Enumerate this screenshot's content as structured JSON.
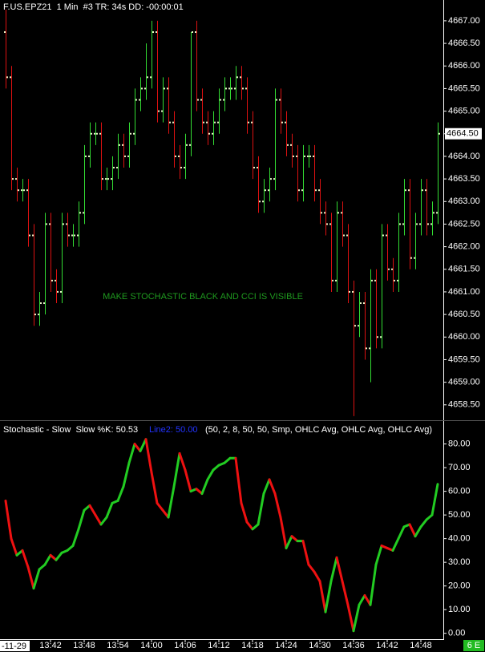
{
  "chart_data": [
    {
      "type": "ohlc",
      "title": "F.US.EPZ21  1 Min  #3 TR: 34s DD: -00:00:01",
      "annotation": "MAKE STOCHASTIC BLACK AND CCI IS VISIBLE",
      "open": [
        4666.75,
        4665.75,
        4663.5,
        4663.25,
        4663.25,
        4662.25,
        4660.5,
        4660.75,
        4662.5,
        4661.25,
        4661.0,
        4662.5,
        4662.25,
        4662.25,
        4662.75,
        4664.0,
        4664.5,
        4664.5,
        4663.5,
        4663.5,
        4663.75,
        4664.25,
        4664.0,
        4664.5,
        4665.25,
        4665.5,
        4665.75,
        4666.75,
        4665.0,
        4665.5,
        4664.75,
        4664.0,
        4663.75,
        4664.25,
        4666.75,
        4665.25,
        4664.75,
        4664.5,
        4664.75,
        4665.25,
        4665.5,
        4665.5,
        4665.75,
        4665.5,
        4664.75,
        4663.75,
        4663.0,
        4663.25,
        4663.5,
        4665.25,
        4664.75,
        4664.25,
        4664.0,
        4663.25,
        4664.0,
        4664.0,
        4663.25,
        4662.75,
        4662.5,
        4661.25,
        4662.75,
        4662.25,
        4661.0,
        4660.25,
        4660.75,
        4659.75,
        4661.25,
        4660.0,
        4662.25,
        4661.5,
        4661.25,
        4662.5,
        4663.25,
        4661.75,
        4662.5,
        4663.25,
        4662.5,
        4662.75
      ],
      "high": [
        4667.25,
        4666.0,
        4663.75,
        4663.5,
        4663.5,
        4662.5,
        4661.0,
        4662.75,
        4662.75,
        4661.5,
        4662.75,
        4662.75,
        4662.5,
        4663.0,
        4664.25,
        4664.75,
        4664.75,
        4664.75,
        4663.75,
        4664.0,
        4664.5,
        4664.5,
        4664.75,
        4665.5,
        4665.75,
        4666.5,
        4667.0,
        4667.0,
        4665.75,
        4665.75,
        4665.0,
        4664.25,
        4664.5,
        4666.75,
        4667.0,
        4665.5,
        4665.0,
        4665.0,
        4665.5,
        4665.75,
        4665.75,
        4666.0,
        4666.0,
        4665.75,
        4665.0,
        4664.0,
        4663.5,
        4663.75,
        4665.5,
        4665.5,
        4665.0,
        4664.5,
        4664.25,
        4664.25,
        4664.25,
        4664.25,
        4663.5,
        4663.0,
        4662.75,
        4663.0,
        4663.0,
        4662.5,
        4661.25,
        4661.0,
        4661.0,
        4661.5,
        4661.5,
        4662.5,
        4662.5,
        4661.75,
        4662.75,
        4663.5,
        4663.5,
        4662.75,
        4663.5,
        4663.5,
        4663.0,
        4664.75
      ],
      "low": [
        4665.5,
        4663.25,
        4663.0,
        4663.0,
        4662.0,
        4660.25,
        4660.25,
        4660.5,
        4661.0,
        4660.75,
        4660.75,
        4662.0,
        4662.0,
        4662.0,
        4662.5,
        4663.75,
        4664.25,
        4663.25,
        4663.25,
        4663.25,
        4663.5,
        4663.75,
        4663.75,
        4664.25,
        4665.0,
        4665.25,
        4665.5,
        4664.75,
        4664.75,
        4664.5,
        4663.75,
        4663.5,
        4663.5,
        4664.0,
        4665.0,
        4664.5,
        4664.25,
        4664.25,
        4664.5,
        4665.0,
        4665.25,
        4665.25,
        4665.25,
        4664.5,
        4663.5,
        4662.75,
        4662.75,
        4663.0,
        4663.25,
        4664.5,
        4664.0,
        4663.75,
        4663.0,
        4663.0,
        4663.75,
        4663.0,
        4662.5,
        4662.25,
        4661.0,
        4661.0,
        4662.0,
        4660.75,
        4658.25,
        4660.0,
        4659.5,
        4659.0,
        4659.75,
        4659.75,
        4661.25,
        4661.0,
        4661.0,
        4662.25,
        4661.5,
        4661.5,
        4662.25,
        4662.25,
        4662.25,
        4662.5
      ],
      "close": [
        4665.75,
        4663.5,
        4663.25,
        4663.25,
        4662.25,
        4660.5,
        4660.75,
        4662.5,
        4661.25,
        4661.0,
        4662.5,
        4662.25,
        4662.25,
        4662.75,
        4664.0,
        4664.5,
        4664.5,
        4663.5,
        4663.5,
        4663.75,
        4664.25,
        4664.0,
        4664.5,
        4665.25,
        4665.5,
        4665.75,
        4666.75,
        4665.0,
        4665.5,
        4664.75,
        4664.0,
        4663.75,
        4664.25,
        4666.75,
        4665.25,
        4664.75,
        4664.5,
        4664.75,
        4665.25,
        4665.5,
        4665.5,
        4665.75,
        4665.5,
        4664.75,
        4663.75,
        4663.0,
        4663.25,
        4663.5,
        4665.25,
        4664.75,
        4664.25,
        4664.0,
        4663.25,
        4664.0,
        4664.0,
        4663.25,
        4662.75,
        4662.5,
        4661.25,
        4662.75,
        4662.25,
        4661.0,
        4660.25,
        4660.75,
        4659.75,
        4661.25,
        4660.0,
        4662.25,
        4661.5,
        4661.25,
        4662.5,
        4663.25,
        4661.75,
        4662.5,
        4663.25,
        4662.5,
        4662.75,
        4664.5
      ],
      "up_color": "#33dd33",
      "down_color": "#dd1111",
      "tick_color": "#e8f4c8",
      "annotation_color": "#1f9a1f",
      "ylim": [
        4658.23,
        4667.46
      ],
      "yticks": [
        {
          "value": 4658.5,
          "label": "4658.50"
        },
        {
          "value": 4659,
          "label": "4659.00"
        },
        {
          "value": 4659.5,
          "label": "4659.50"
        },
        {
          "value": 4660,
          "label": "4660.00"
        },
        {
          "value": 4660.5,
          "label": "4660.50"
        },
        {
          "value": 4661,
          "label": "4661.00"
        },
        {
          "value": 4661.5,
          "label": "4661.50"
        },
        {
          "value": 4662,
          "label": "4662.00"
        },
        {
          "value": 4662.5,
          "label": "4662.50"
        },
        {
          "value": 4663,
          "label": "4663.00"
        },
        {
          "value": 4663.5,
          "label": "4663.50"
        },
        {
          "value": 4664,
          "label": "4664.00"
        },
        {
          "value": 4664.5,
          "label": "4664.50"
        },
        {
          "value": 4665,
          "label": "4665.00"
        },
        {
          "value": 4665.5,
          "label": "4665.50"
        },
        {
          "value": 4666,
          "label": "4666.00"
        },
        {
          "value": 4666.5,
          "label": "4666.50"
        },
        {
          "value": 4667,
          "label": "4667.00"
        }
      ],
      "last_price": {
        "value": 4664.5,
        "label": "4664.50"
      }
    },
    {
      "type": "line",
      "title": "Stochastic - Slow  Slow %K: 50.53",
      "subtitle": "Line2: 50.00",
      "params": "(50, 2, 8, 50, 50, Smp, OHLC Avg, OHLC Avg, OHLC Avg)",
      "date_label": "-11-29",
      "status": "6 E",
      "categories": [
        null,
        null,
        null,
        null,
        null,
        null,
        null,
        null,
        "13:42",
        null,
        null,
        null,
        null,
        null,
        "13:48",
        null,
        null,
        null,
        null,
        null,
        "13:54",
        null,
        null,
        null,
        null,
        null,
        "14:00",
        null,
        null,
        null,
        null,
        null,
        "14:06",
        null,
        null,
        null,
        null,
        null,
        "14:12",
        null,
        null,
        null,
        null,
        null,
        "14:18",
        null,
        null,
        null,
        null,
        null,
        "14:24",
        null,
        null,
        null,
        null,
        null,
        "14:30",
        null,
        null,
        null,
        null,
        null,
        "14:36",
        null,
        null,
        null,
        null,
        null,
        "14:42",
        null,
        null,
        null,
        null,
        null,
        "14:48",
        null,
        null,
        null
      ],
      "values": [
        56,
        40,
        33,
        35,
        28,
        19,
        27,
        29,
        33,
        31,
        34,
        35,
        37,
        44,
        52,
        54,
        50,
        46,
        49,
        55,
        56,
        62,
        72,
        80,
        77,
        82,
        68,
        55,
        52,
        49,
        62,
        76,
        69,
        60,
        61,
        59,
        65,
        69,
        71,
        72,
        74,
        74,
        55,
        47,
        44,
        46,
        59,
        65,
        59,
        49,
        36,
        41,
        39,
        39,
        29,
        26,
        22,
        9,
        22,
        32,
        22,
        12,
        1,
        12,
        16,
        12,
        29,
        37,
        36,
        35,
        40,
        45,
        46,
        41,
        45,
        48,
        50,
        63
      ],
      "up_color": "#22cc22",
      "down_color": "#ee1111",
      "subtitle_color": "#2233ff",
      "ylim": [
        -3.5,
        88
      ],
      "yticks": [
        {
          "value": 0,
          "label": "0.00"
        },
        {
          "value": 10,
          "label": "10.00"
        },
        {
          "value": 20,
          "label": "20.00"
        },
        {
          "value": 30,
          "label": "30.00"
        },
        {
          "value": 40,
          "label": "40.00"
        },
        {
          "value": 50,
          "label": "50.00"
        },
        {
          "value": 60,
          "label": "60.00"
        },
        {
          "value": 70,
          "label": "70.00"
        },
        {
          "value": 80,
          "label": "80.00"
        }
      ]
    }
  ]
}
